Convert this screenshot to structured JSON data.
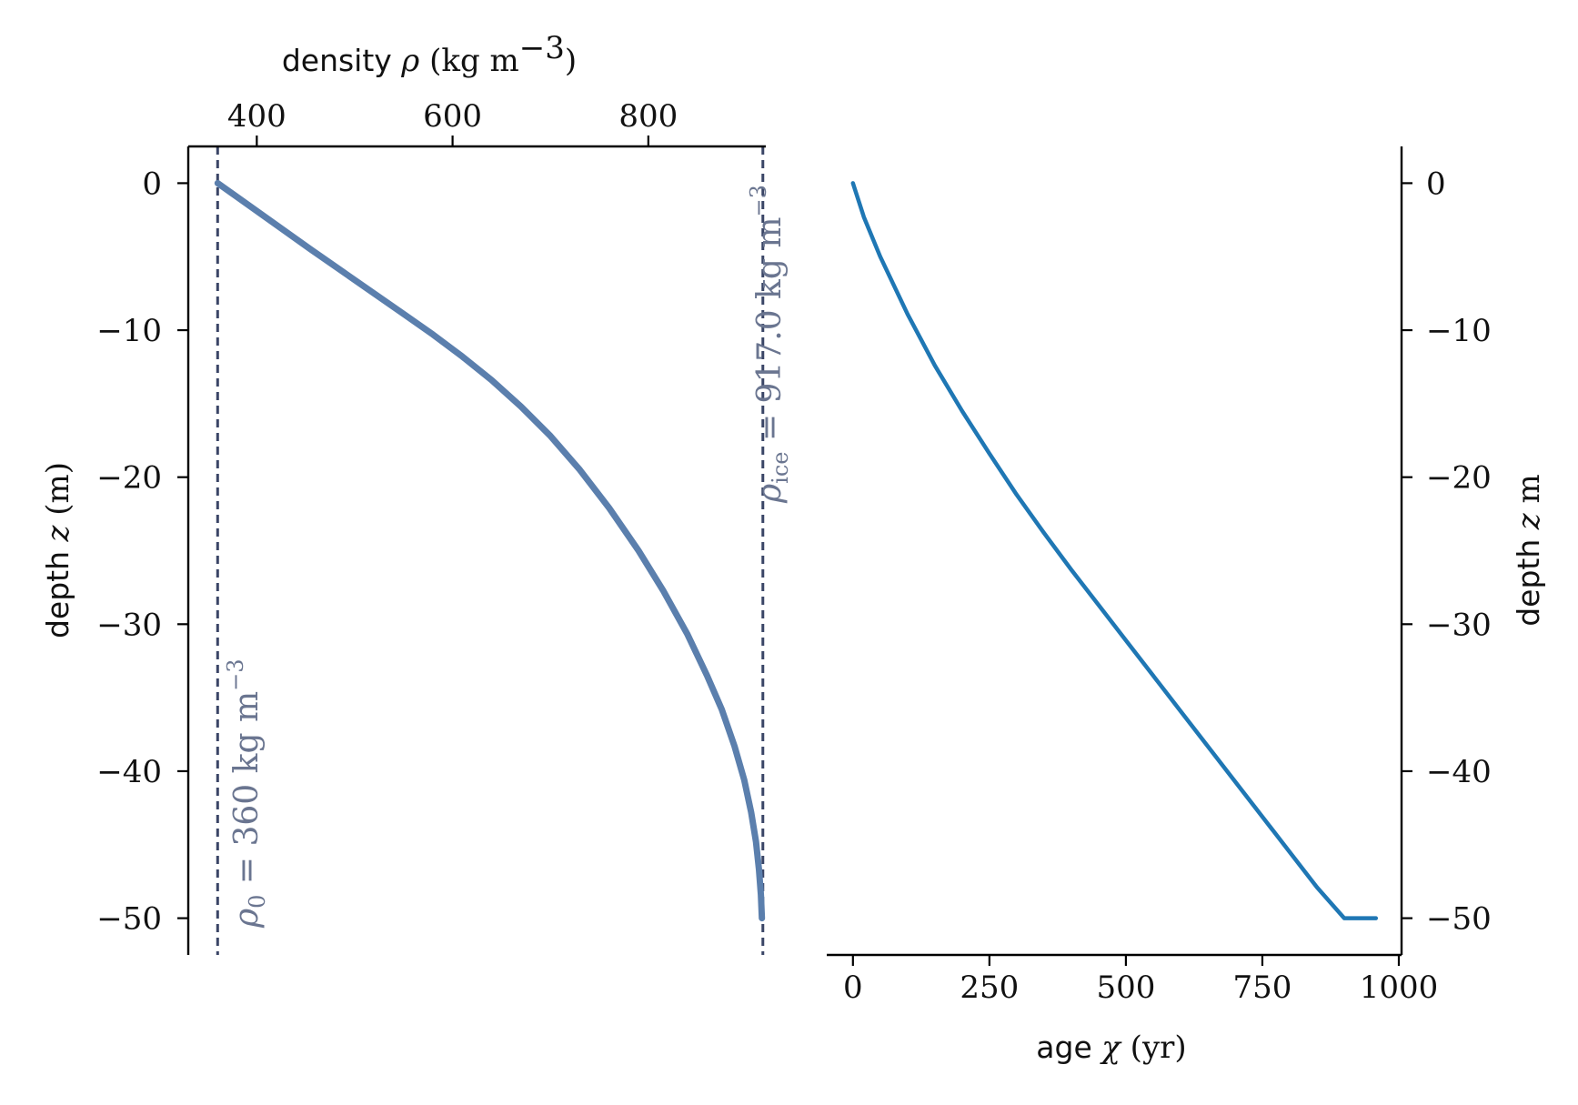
{
  "chart_data": [
    {
      "type": "line",
      "panel": "left",
      "xlabel": {
        "prefix": "density ",
        "symbol": "ρ",
        "unit": " (kg m",
        "exp": "−3",
        "close": ")"
      },
      "ylabel": {
        "prefix": "depth ",
        "symbol": "z",
        "unit": " (m)"
      },
      "xaxis_position": "top",
      "xlim": [
        330,
        920
      ],
      "ylim": [
        -52.5,
        2.5
      ],
      "xticks": [
        400,
        600,
        800
      ],
      "xtick_labels": [
        "400",
        "600",
        "800"
      ],
      "yticks": [
        0,
        -10,
        -20,
        -30,
        -40,
        -50
      ],
      "ytick_labels": [
        "0",
        "−10",
        "−20",
        "−30",
        "−40",
        "−50"
      ],
      "series": [
        {
          "color": "#5b7fad",
          "x": [
            360,
            455,
            550,
            580,
            610,
            640,
            670,
            700,
            730,
            760,
            790,
            815,
            840,
            860,
            875,
            888,
            898,
            905,
            910,
            913,
            915,
            916
          ],
          "y": [
            0,
            -4.5,
            -8.9,
            -10.3,
            -11.8,
            -13.4,
            -15.2,
            -17.2,
            -19.5,
            -22.1,
            -25.0,
            -27.7,
            -30.7,
            -33.5,
            -35.8,
            -38.3,
            -40.6,
            -42.8,
            -44.8,
            -46.7,
            -48.4,
            -50.0
          ]
        }
      ],
      "reference_lines": [
        {
          "x": 360,
          "style": "dashed",
          "color": "#3a4566"
        },
        {
          "x": 917,
          "style": "dashed",
          "color": "#3a4566"
        }
      ],
      "annotations": [
        {
          "id": "rho0",
          "symbol": "ρ",
          "sub": "0",
          "text": " = 360 kg m",
          "exp": "−3",
          "color": "#6a7590"
        },
        {
          "id": "rhoice",
          "symbol": "ρ",
          "sub": "ice",
          "text": " = 917.0 kg m",
          "exp": "−3",
          "color": "#6a7590"
        }
      ]
    },
    {
      "type": "line",
      "panel": "right",
      "xlabel": {
        "prefix": "age ",
        "symbol": "χ",
        "unit": " (yr)"
      },
      "ylabel": {
        "prefix": "depth ",
        "symbol": "z",
        "unit": " m"
      },
      "yaxis_position": "right",
      "xlim": [
        -48,
        1005
      ],
      "ylim": [
        -52.5,
        2.5
      ],
      "xticks": [
        0,
        250,
        500,
        750,
        1000
      ],
      "xtick_labels": [
        "0",
        "250",
        "500",
        "750",
        "1000"
      ],
      "yticks": [
        0,
        -10,
        -20,
        -30,
        -40,
        -50
      ],
      "ytick_labels": [
        "0",
        "−10",
        "−20",
        "−30",
        "−40",
        "−50"
      ],
      "series": [
        {
          "color": "#1f77b4",
          "x": [
            0,
            20,
            50,
            100,
            150,
            200,
            250,
            300,
            350,
            400,
            450,
            500,
            550,
            600,
            650,
            700,
            750,
            800,
            850,
            900,
            958
          ],
          "y": [
            0,
            -2.3,
            -5.0,
            -8.9,
            -12.4,
            -15.5,
            -18.4,
            -21.2,
            -23.8,
            -26.3,
            -28.7,
            -31.1,
            -33.5,
            -35.9,
            -38.3,
            -40.7,
            -43.1,
            -45.5,
            -47.9,
            -50.0,
            -50.0
          ]
        }
      ]
    }
  ]
}
